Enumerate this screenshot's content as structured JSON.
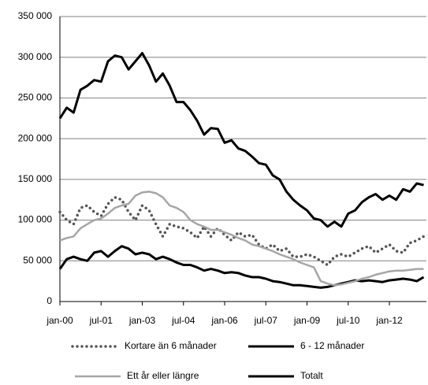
{
  "chart_data": {
    "type": "line",
    "categories": [
      "jan-00",
      null,
      null,
      null,
      null,
      null,
      "jul-01",
      null,
      null,
      null,
      null,
      null,
      "jan-03",
      null,
      null,
      null,
      null,
      null,
      "jul-04",
      null,
      null,
      null,
      null,
      null,
      "jan-06",
      null,
      null,
      null,
      null,
      null,
      "jul-07",
      null,
      null,
      null,
      null,
      null,
      "jan-09",
      null,
      null,
      null,
      null,
      null,
      "jul-10",
      null,
      null,
      null,
      null,
      null,
      "jan-12",
      null,
      null,
      null,
      null,
      null
    ],
    "series": [
      {
        "name": "Kortare än 6 månader",
        "color": "#555555",
        "line_style": "dotted",
        "values": [
          110000,
          100000,
          95000,
          115000,
          118000,
          110000,
          105000,
          120000,
          128000,
          125000,
          110000,
          100000,
          118000,
          112000,
          95000,
          80000,
          95000,
          92000,
          90000,
          85000,
          78000,
          92000,
          80000,
          90000,
          82000,
          75000,
          85000,
          80000,
          82000,
          70000,
          65000,
          70000,
          62000,
          65000,
          55000,
          55000,
          58000,
          55000,
          50000,
          45000,
          55000,
          58000,
          55000,
          60000,
          65000,
          68000,
          60000,
          65000,
          70000,
          62000,
          60000,
          72000,
          75000,
          80000
        ]
      },
      {
        "name": "6 - 12 månader",
        "color": "#000000",
        "line_style": "solid",
        "values": [
          40000,
          52000,
          55000,
          52000,
          50000,
          60000,
          62000,
          55000,
          62000,
          68000,
          65000,
          58000,
          60000,
          58000,
          52000,
          55000,
          52000,
          48000,
          45000,
          45000,
          42000,
          38000,
          40000,
          38000,
          35000,
          36000,
          35000,
          32000,
          30000,
          30000,
          28000,
          25000,
          24000,
          22000,
          20000,
          20000,
          19000,
          18000,
          17000,
          18000,
          20000,
          22000,
          24000,
          26000,
          25000,
          26000,
          25000,
          24000,
          26000,
          27000,
          28000,
          27000,
          25000,
          30000
        ]
      },
      {
        "name": "Ett år eller längre",
        "color": "#a6a6a6",
        "line_style": "solid",
        "values": [
          75000,
          78000,
          80000,
          90000,
          95000,
          100000,
          102000,
          108000,
          115000,
          118000,
          120000,
          130000,
          134000,
          135000,
          133000,
          128000,
          118000,
          115000,
          110000,
          100000,
          95000,
          92000,
          88000,
          88000,
          85000,
          82000,
          78000,
          75000,
          70000,
          68000,
          65000,
          62000,
          58000,
          55000,
          52000,
          48000,
          45000,
          42000,
          25000,
          22000,
          20000,
          21000,
          23000,
          25000,
          28000,
          30000,
          33000,
          35000,
          37000,
          38000,
          38000,
          39000,
          40000,
          40000
        ]
      },
      {
        "name": "Totalt",
        "color": "#000000",
        "line_style": "solid",
        "values": [
          225000,
          238000,
          232000,
          260000,
          265000,
          272000,
          270000,
          295000,
          302000,
          300000,
          285000,
          295000,
          305000,
          290000,
          270000,
          280000,
          265000,
          245000,
          245000,
          235000,
          222000,
          205000,
          213000,
          212000,
          195000,
          198000,
          188000,
          185000,
          178000,
          170000,
          168000,
          155000,
          150000,
          135000,
          125000,
          118000,
          112000,
          102000,
          100000,
          92000,
          98000,
          92000,
          108000,
          112000,
          122000,
          128000,
          132000,
          125000,
          130000,
          125000,
          138000,
          135000,
          145000,
          143000
        ]
      }
    ],
    "ylim": [
      0,
      350000
    ],
    "yticks": [
      0,
      {
        "value": 50000,
        "label": "50 000"
      },
      {
        "value": 100000,
        "label": "100 000"
      },
      {
        "value": 150000,
        "label": "150 000"
      },
      {
        "value": 200000,
        "label": "200 000"
      },
      {
        "value": 250000,
        "label": "250 000"
      },
      {
        "value": 300000,
        "label": "300 000"
      },
      {
        "value": 350000,
        "label": "350 000"
      }
    ],
    "grid": true,
    "legend": "bottom"
  }
}
